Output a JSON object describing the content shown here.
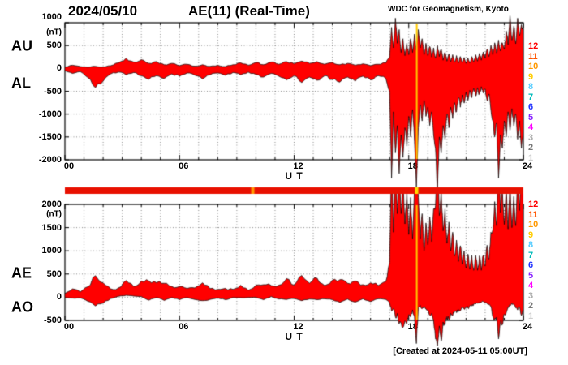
{
  "header": {
    "date": "2024/05/10",
    "title": "AE(11) (Real-Time)",
    "source": "WDC for Geomagnetism, Kyoto"
  },
  "footer": {
    "created": "[Created at 2024-05-11 05:00UT]"
  },
  "stations": {
    "labels": [
      "12",
      "11",
      "10",
      "9",
      "8",
      "7",
      "6",
      "5",
      "4",
      "3",
      "2",
      "1"
    ],
    "colors": [
      "#ff0000",
      "#ff5500",
      "#ff9900",
      "#ffcc00",
      "#55ccff",
      "#00bbbb",
      "#2233ff",
      "#8822ff",
      "#ff00ff",
      "#aaaaaa",
      "#787878",
      "#cfcfcf"
    ]
  },
  "style": {
    "data_fill": "#ff0000",
    "data_stroke": "#000000",
    "grid_color": "#666666",
    "frame_color": "#000000",
    "bar_color": "#e81000",
    "marker_color": "#ffc800"
  },
  "availability_bar": {
    "segments": [
      {
        "t_start": 9.75,
        "t_end": 9.92,
        "color": "#ff9900"
      },
      {
        "t_start": 18.32,
        "t_end": 18.5,
        "color": "#ffdd00"
      }
    ]
  },
  "markers": [
    {
      "t": 18.42
    }
  ],
  "chart_data": [
    {
      "type": "area",
      "name": "AU-AL",
      "xlabel": "U T",
      "ylabel": "(nT)",
      "xlim": [
        0,
        24
      ],
      "ylim": [
        -2000,
        1000
      ],
      "grid": true,
      "yticks": [
        1000,
        500,
        0,
        -500,
        -1000,
        -1500,
        -2000
      ],
      "ytick_labels": [
        "1000",
        "500",
        "0",
        "-500",
        "-1000",
        "-1500",
        "-2000"
      ],
      "xticks": [
        0,
        6,
        12,
        18,
        24
      ],
      "xtick_labels": [
        "00",
        "06",
        "12",
        "18",
        "24"
      ],
      "left_labels": [
        "AU",
        "AL"
      ],
      "x": [
        0,
        0.4,
        0.8,
        1.2,
        1.6,
        2,
        2.4,
        2.8,
        3.2,
        3.6,
        4,
        4.4,
        4.8,
        5.2,
        5.6,
        6,
        6.4,
        6.8,
        7.2,
        7.6,
        8,
        8.4,
        8.8,
        9.2,
        9.6,
        10,
        10.4,
        10.8,
        11.2,
        11.6,
        12,
        12.4,
        12.8,
        13.2,
        13.6,
        14,
        14.4,
        14.8,
        15.2,
        15.6,
        16,
        16.4,
        16.8,
        17,
        17.1,
        17.2,
        17.3,
        17.4,
        17.5,
        17.6,
        17.7,
        17.8,
        17.9,
        18,
        18.1,
        18.2,
        18.3,
        18.4,
        18.5,
        18.6,
        18.7,
        18.8,
        18.9,
        19,
        19.1,
        19.2,
        19.3,
        19.4,
        19.5,
        19.6,
        19.7,
        19.8,
        19.9,
        20,
        20.1,
        20.2,
        20.3,
        20.4,
        20.5,
        20.6,
        20.7,
        20.8,
        20.9,
        21,
        21.1,
        21.2,
        21.3,
        21.4,
        21.5,
        21.6,
        21.7,
        21.8,
        21.9,
        22,
        22.1,
        22.2,
        22.3,
        22.4,
        22.5,
        22.6,
        22.7,
        22.8,
        22.9,
        23,
        23.1,
        23.2,
        23.3,
        23.4,
        23.5,
        23.6,
        23.7,
        23.8,
        23.9,
        24
      ],
      "series": [
        {
          "name": "AU",
          "values": [
            30,
            70,
            40,
            25,
            45,
            30,
            60,
            120,
            220,
            140,
            190,
            110,
            150,
            80,
            110,
            60,
            90,
            50,
            80,
            45,
            70,
            40,
            80,
            120,
            70,
            130,
            80,
            140,
            90,
            150,
            100,
            160,
            110,
            150,
            90,
            130,
            80,
            110,
            70,
            100,
            60,
            90,
            120,
            250,
            900,
            450,
            1100,
            550,
            850,
            350,
            650,
            280,
            550,
            300,
            650,
            350,
            750,
            400,
            850,
            450,
            650,
            300,
            550,
            280,
            480,
            250,
            450,
            220,
            500,
            260,
            420,
            180,
            350,
            160,
            320,
            150,
            300,
            140,
            280,
            120,
            260,
            130,
            240,
            110,
            230,
            120,
            260,
            140,
            300,
            160,
            330,
            180,
            360,
            220,
            420,
            260,
            500,
            300,
            560,
            340,
            620,
            380,
            560,
            420,
            820,
            520,
            1150,
            620,
            920,
            540,
            1100,
            720,
            960,
            820
          ]
        },
        {
          "name": "AL",
          "values": [
            -50,
            -110,
            -70,
            -200,
            -420,
            -280,
            -120,
            -80,
            -140,
            -90,
            -160,
            -240,
            -160,
            -220,
            -120,
            -170,
            -100,
            -150,
            -230,
            -140,
            -100,
            -150,
            -90,
            -140,
            -80,
            -130,
            -190,
            -110,
            -170,
            -250,
            -160,
            -310,
            -190,
            -260,
            -160,
            -240,
            -300,
            -190,
            -280,
            -170,
            -250,
            -160,
            -220,
            -500,
            -2400,
            -950,
            -1850,
            -1250,
            -2300,
            -1450,
            -1950,
            -1300,
            -1700,
            -1050,
            -1500,
            -900,
            -1600,
            -2600,
            -1300,
            -800,
            -1150,
            -700,
            -1050,
            -850,
            -1250,
            -950,
            -1450,
            -1750,
            -2700,
            -1500,
            -1850,
            -1250,
            -1550,
            -1000,
            -1300,
            -850,
            -1100,
            -750,
            -950,
            -650,
            -850,
            -580,
            -760,
            -520,
            -700,
            -480,
            -640,
            -440,
            -600,
            -420,
            -560,
            -400,
            -540,
            -450,
            -700,
            -560,
            -900,
            -1150,
            -1500,
            -1200,
            -2400,
            -1450,
            -1750,
            -1150,
            -1500,
            -950,
            -1350,
            -880,
            -1250,
            -1000,
            -1550,
            -1150,
            -1750,
            -1400
          ]
        }
      ]
    },
    {
      "type": "area",
      "name": "AE-AO",
      "xlabel": "U T",
      "ylabel": "(nT)",
      "xlim": [
        0,
        24
      ],
      "ylim": [
        -500,
        2000
      ],
      "grid": true,
      "yticks": [
        2000,
        1500,
        1000,
        500,
        0,
        -500
      ],
      "ytick_labels": [
        "2000",
        "1500",
        "1000",
        "500",
        "0",
        "-500"
      ],
      "xticks": [
        0,
        6,
        12,
        18,
        24
      ],
      "xtick_labels": [
        "00",
        "06",
        "12",
        "18",
        "24"
      ],
      "left_labels": [
        "AE",
        "AO"
      ],
      "x": [
        0,
        0.4,
        0.8,
        1.2,
        1.6,
        2,
        2.4,
        2.8,
        3.2,
        3.6,
        4,
        4.4,
        4.8,
        5.2,
        5.6,
        6,
        6.4,
        6.8,
        7.2,
        7.6,
        8,
        8.4,
        8.8,
        9.2,
        9.6,
        10,
        10.4,
        10.8,
        11.2,
        11.6,
        12,
        12.4,
        12.8,
        13.2,
        13.6,
        14,
        14.4,
        14.8,
        15.2,
        15.6,
        16,
        16.4,
        16.8,
        17,
        17.1,
        17.2,
        17.3,
        17.4,
        17.5,
        17.6,
        17.7,
        17.8,
        17.9,
        18,
        18.1,
        18.2,
        18.3,
        18.4,
        18.5,
        18.6,
        18.7,
        18.8,
        18.9,
        19,
        19.1,
        19.2,
        19.3,
        19.4,
        19.5,
        19.6,
        19.7,
        19.8,
        19.9,
        20,
        20.1,
        20.2,
        20.3,
        20.4,
        20.5,
        20.6,
        20.7,
        20.8,
        20.9,
        21,
        21.1,
        21.2,
        21.3,
        21.4,
        21.5,
        21.6,
        21.7,
        21.8,
        21.9,
        22,
        22.1,
        22.2,
        22.3,
        22.4,
        22.5,
        22.6,
        22.7,
        22.8,
        22.9,
        23,
        23.1,
        23.2,
        23.3,
        23.4,
        23.5,
        23.6,
        23.7,
        23.8,
        23.9,
        24
      ],
      "series": [
        {
          "name": "AE",
          "values": [
            80,
            180,
            110,
            225,
            465,
            310,
            180,
            200,
            360,
            230,
            350,
            350,
            310,
            300,
            230,
            230,
            190,
            200,
            310,
            185,
            170,
            190,
            170,
            260,
            150,
            260,
            270,
            250,
            260,
            400,
            260,
            470,
            300,
            410,
            250,
            370,
            380,
            300,
            350,
            270,
            310,
            250,
            340,
            750,
            3000,
            1400,
            2950,
            1800,
            2850,
            1800,
            2600,
            1580,
            2250,
            1350,
            2150,
            1250,
            2350,
            3000,
            2150,
            1250,
            1800,
            1000,
            1600,
            1130,
            1730,
            1200,
            1900,
            1970,
            3200,
            1760,
            2270,
            1430,
            1900,
            1160,
            1620,
            1000,
            1400,
            890,
            1230,
            770,
            1110,
            710,
            1000,
            630,
            930,
            600,
            900,
            580,
            900,
            580,
            890,
            580,
            900,
            670,
            1120,
            820,
            1400,
            1450,
            2060,
            1540,
            3000,
            1830,
            2310,
            1570,
            2320,
            1470,
            2500,
            1500,
            2170,
            1540,
            2650,
            1870,
            2710,
            2220
          ]
        },
        {
          "name": "AO",
          "values": [
            -10,
            -20,
            -15,
            -88,
            -188,
            -125,
            -30,
            20,
            40,
            25,
            15,
            -65,
            -5,
            -70,
            -5,
            -55,
            -5,
            -50,
            -75,
            -48,
            -15,
            -55,
            -5,
            -10,
            -5,
            0,
            -55,
            15,
            -40,
            -50,
            -30,
            -75,
            -40,
            -55,
            -35,
            -55,
            -110,
            -40,
            -105,
            -35,
            -95,
            -35,
            -50,
            -125,
            -300,
            -250,
            -425,
            -350,
            -575,
            -550,
            -650,
            -510,
            -575,
            -375,
            -425,
            -275,
            -425,
            -1000,
            -225,
            -175,
            -250,
            -200,
            -250,
            -285,
            -385,
            -350,
            -500,
            -900,
            -1050,
            -620,
            -950,
            -535,
            -600,
            -420,
            -490,
            -350,
            -400,
            -305,
            -335,
            -265,
            -295,
            -225,
            -260,
            -205,
            -235,
            -180,
            -190,
            -150,
            -150,
            -130,
            -115,
            -110,
            -90,
            -115,
            -140,
            -150,
            -200,
            -425,
            -470,
            -430,
            -900,
            -535,
            -595,
            -365,
            -340,
            -215,
            -175,
            -130,
            -165,
            -230,
            -275,
            -215,
            -395,
            -290
          ]
        }
      ]
    }
  ]
}
